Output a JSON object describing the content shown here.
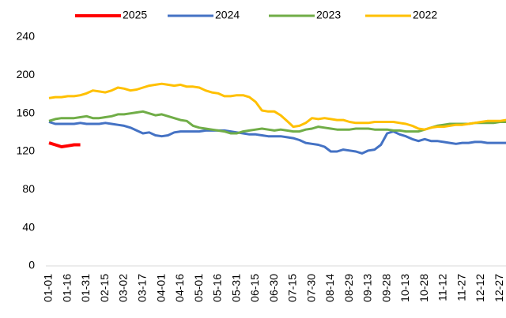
{
  "chart_data": {
    "type": "line",
    "categories": [
      "01-01",
      null,
      null,
      "01-16",
      null,
      null,
      "01-31",
      null,
      null,
      "02-15",
      null,
      null,
      "03-02",
      null,
      null,
      "03-17",
      null,
      null,
      "04-01",
      null,
      null,
      "04-16",
      null,
      null,
      "05-01",
      null,
      null,
      "05-16",
      null,
      null,
      "05-31",
      null,
      null,
      "06-15",
      null,
      null,
      "06-30",
      null,
      null,
      "07-15",
      null,
      null,
      "07-30",
      null,
      null,
      "08-14",
      null,
      null,
      "08-29",
      null,
      null,
      "09-13",
      null,
      null,
      "09-28",
      null,
      null,
      "10-13",
      null,
      null,
      "10-28",
      null,
      null,
      "11-12",
      null,
      null,
      "11-27",
      null,
      null,
      "12-12",
      null,
      null,
      "12-27",
      null
    ],
    "series": [
      {
        "name": "2025",
        "color": "#ff0000",
        "values": [
          129,
          127,
          125,
          126,
          127,
          127,
          null,
          null,
          null,
          null,
          null,
          null,
          null,
          null,
          null,
          null,
          null,
          null,
          null,
          null,
          null,
          null,
          null,
          null,
          null,
          null,
          null,
          null,
          null,
          null,
          null,
          null,
          null,
          null,
          null,
          null,
          null,
          null,
          null,
          null,
          null,
          null,
          null,
          null,
          null,
          null,
          null,
          null,
          null,
          null,
          null,
          null,
          null,
          null,
          null,
          null,
          null,
          null,
          null,
          null,
          null,
          null,
          null,
          null,
          null,
          null,
          null,
          null,
          null,
          null,
          null,
          null,
          null,
          null
        ]
      },
      {
        "name": "2024",
        "color": "#4472c4",
        "values": [
          151,
          149,
          149,
          149,
          149,
          150,
          149,
          149,
          149,
          150,
          149,
          148,
          147,
          145,
          142,
          139,
          140,
          137,
          136,
          137,
          140,
          141,
          141,
          141,
          141,
          142,
          142,
          142,
          142,
          141,
          140,
          139,
          138,
          138,
          137,
          136,
          136,
          136,
          135,
          134,
          132,
          129,
          128,
          127,
          125,
          120,
          120,
          122,
          121,
          120,
          118,
          121,
          122,
          127,
          139,
          141,
          138,
          136,
          133,
          131,
          133,
          131,
          131,
          130,
          129,
          128,
          129,
          129,
          130,
          130,
          129,
          129,
          129,
          129
        ]
      },
      {
        "name": "2023",
        "color": "#70ad47",
        "values": [
          152,
          154,
          155,
          155,
          155,
          156,
          157,
          155,
          155,
          156,
          157,
          159,
          159,
          160,
          161,
          162,
          160,
          158,
          159,
          157,
          155,
          153,
          152,
          147,
          145,
          144,
          143,
          142,
          141,
          139,
          139,
          141,
          142,
          143,
          144,
          143,
          142,
          143,
          142,
          141,
          141,
          143,
          144,
          146,
          145,
          144,
          143,
          143,
          143,
          144,
          144,
          144,
          143,
          143,
          143,
          142,
          142,
          141,
          141,
          141,
          143,
          145,
          147,
          148,
          149,
          149,
          149,
          149,
          150,
          150,
          150,
          150,
          151,
          151
        ]
      },
      {
        "name": "2022",
        "color": "#ffc000",
        "values": [
          176,
          177,
          177,
          178,
          178,
          179,
          181,
          184,
          183,
          182,
          184,
          187,
          186,
          184,
          185,
          187,
          189,
          190,
          191,
          190,
          189,
          190,
          188,
          188,
          187,
          184,
          182,
          181,
          178,
          178,
          179,
          179,
          177,
          172,
          163,
          162,
          162,
          158,
          152,
          146,
          147,
          150,
          155,
          154,
          155,
          154,
          153,
          153,
          151,
          150,
          150,
          150,
          151,
          151,
          151,
          151,
          150,
          149,
          147,
          144,
          143,
          145,
          146,
          146,
          147,
          148,
          148,
          149,
          150,
          151,
          152,
          152,
          152,
          153
        ]
      }
    ],
    "ylim": [
      0,
      240
    ],
    "yticks": [
      0,
      40,
      80,
      120,
      160,
      200,
      240
    ],
    "grid": false,
    "legend": "top"
  }
}
